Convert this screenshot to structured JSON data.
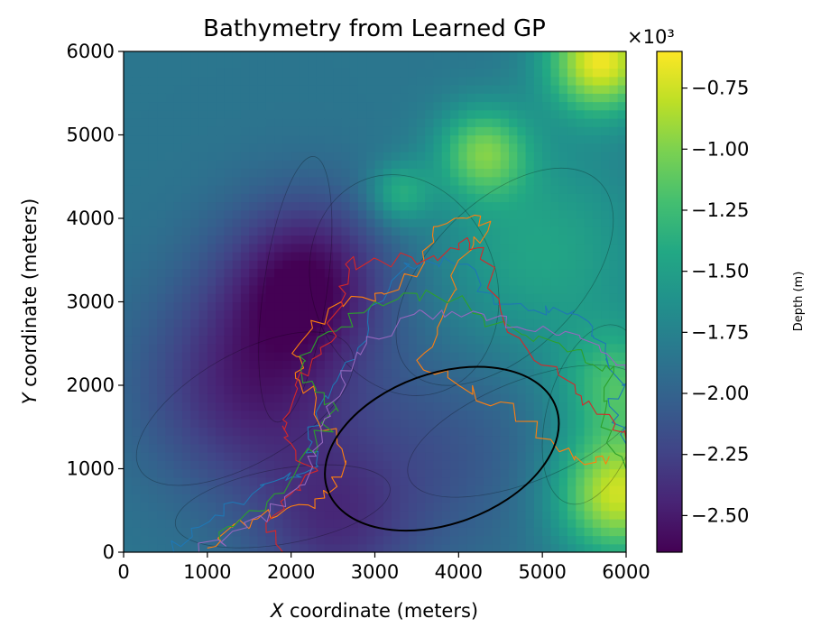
{
  "chart_data": {
    "type": "heatmap",
    "title": "Bathymetry from Learned GP",
    "xlabel_var": "X",
    "xlabel_rest": " coordinate (meters)",
    "ylabel_var": "Y",
    "ylabel_rest": " coordinate (meters)",
    "xlim": [
      0,
      6000
    ],
    "ylim": [
      0,
      6000
    ],
    "xticks": [
      0,
      1000,
      2000,
      3000,
      4000,
      5000,
      6000
    ],
    "yticks": [
      0,
      1000,
      2000,
      3000,
      4000,
      5000,
      6000
    ],
    "colorbar": {
      "label": "Depth (m)",
      "multiplier": "×10³",
      "colormap": "viridis",
      "range": [
        -2650,
        -600
      ],
      "ticks": [
        -0.75,
        -1.0,
        -1.25,
        -1.5,
        -1.75,
        -2.0,
        -2.25,
        -2.5
      ],
      "tick_labels": [
        "−0.75",
        "−1.00",
        "−1.25",
        "−1.50",
        "−1.75",
        "−2.00",
        "−2.25",
        "−2.50"
      ]
    },
    "field": {
      "base_depth": -1850,
      "features": [
        {
          "x": 5700,
          "y": 5900,
          "depth_delta": 1200,
          "sigma": 450
        },
        {
          "x": 4300,
          "y": 4800,
          "depth_delta": 750,
          "sigma": 380
        },
        {
          "x": 3300,
          "y": 4300,
          "depth_delta": 480,
          "sigma": 260
        },
        {
          "x": 5900,
          "y": 700,
          "depth_delta": 1100,
          "sigma": 520
        },
        {
          "x": 5900,
          "y": 2000,
          "depth_delta": 600,
          "sigma": 480
        },
        {
          "x": 5000,
          "y": 3600,
          "depth_delta": 400,
          "sigma": 900
        },
        {
          "x": 2200,
          "y": 3300,
          "depth_delta": -700,
          "sigma": 700
        },
        {
          "x": 1500,
          "y": 2000,
          "depth_delta": -600,
          "sigma": 900
        },
        {
          "x": 2500,
          "y": 300,
          "depth_delta": -450,
          "sigma": 700
        },
        {
          "x": 3800,
          "y": 1200,
          "depth_delta": -250,
          "sigma": 900
        }
      ]
    },
    "highlight_ellipse": {
      "cx": 3800,
      "cy": 1240,
      "rx": 1450,
      "ry": 900,
      "rotation_deg": -20,
      "color": "#000000"
    },
    "faint_ellipses": [
      {
        "cx": 2050,
        "cy": 3150,
        "rx": 1600,
        "ry": 380,
        "rotation_deg": -82
      },
      {
        "cx": 3350,
        "cy": 3200,
        "rx": 1100,
        "ry": 1350,
        "rotation_deg": -20
      },
      {
        "cx": 4550,
        "cy": 3300,
        "rx": 1600,
        "ry": 900,
        "rotation_deg": -45
      },
      {
        "cx": 1450,
        "cy": 1720,
        "rx": 1450,
        "ry": 650,
        "rotation_deg": -30
      },
      {
        "cx": 5600,
        "cy": 1650,
        "rx": 1100,
        "ry": 550,
        "rotation_deg": -75
      },
      {
        "cx": 4800,
        "cy": 1450,
        "rx": 1500,
        "ry": 600,
        "rotation_deg": -22
      },
      {
        "cx": 1900,
        "cy": 550,
        "rx": 1300,
        "ry": 450,
        "rotation_deg": -10
      }
    ],
    "series": [
      {
        "color": "#1f77b4",
        "points": [
          [
            600,
            0
          ],
          [
            900,
            300
          ],
          [
            1300,
            600
          ],
          [
            1800,
            850
          ],
          [
            2000,
            900
          ],
          [
            2300,
            1050
          ],
          [
            2200,
            1500
          ],
          [
            2500,
            2000
          ],
          [
            2800,
            2450
          ],
          [
            2950,
            2950
          ],
          [
            3300,
            3350
          ],
          [
            3600,
            3500
          ],
          [
            3950,
            3450
          ],
          [
            4400,
            3100
          ],
          [
            4900,
            2900
          ],
          [
            5300,
            2850
          ],
          [
            5600,
            2700
          ],
          [
            5750,
            2400
          ],
          [
            5950,
            2000
          ],
          [
            5800,
            1750
          ],
          [
            6000,
            1300
          ]
        ]
      },
      {
        "color": "#ff7f0e",
        "points": [
          [
            1000,
            50
          ],
          [
            1300,
            300
          ],
          [
            1600,
            400
          ],
          [
            2000,
            550
          ],
          [
            2400,
            650
          ],
          [
            2600,
            900
          ],
          [
            2550,
            1300
          ],
          [
            2300,
            1850
          ],
          [
            2050,
            2150
          ],
          [
            2100,
            2500
          ],
          [
            2600,
            3000
          ],
          [
            3000,
            3100
          ],
          [
            3500,
            3300
          ],
          [
            3700,
            3900
          ],
          [
            4100,
            4000
          ],
          [
            4350,
            3850
          ],
          [
            4000,
            3500
          ],
          [
            3800,
            2800
          ],
          [
            3500,
            2300
          ],
          [
            4000,
            2000
          ],
          [
            4500,
            1800
          ],
          [
            5100,
            1350
          ],
          [
            5500,
            1050
          ],
          [
            5800,
            1150
          ]
        ]
      },
      {
        "color": "#2ca02c",
        "points": [
          [
            1150,
            150
          ],
          [
            1500,
            500
          ],
          [
            1800,
            700
          ],
          [
            2100,
            1100
          ],
          [
            2400,
            1450
          ],
          [
            2500,
            1800
          ],
          [
            2250,
            2050
          ],
          [
            2100,
            2350
          ],
          [
            2600,
            2700
          ],
          [
            3000,
            3000
          ],
          [
            3500,
            3100
          ],
          [
            4000,
            3050
          ],
          [
            4300,
            2800
          ],
          [
            4800,
            2600
          ],
          [
            5300,
            2400
          ],
          [
            5600,
            2250
          ],
          [
            5850,
            2150
          ],
          [
            5700,
            1500
          ],
          [
            6000,
            1000
          ]
        ]
      },
      {
        "color": "#d62728",
        "points": [
          [
            1900,
            0
          ],
          [
            1700,
            350
          ],
          [
            2050,
            750
          ],
          [
            2300,
            1000
          ],
          [
            2000,
            1300
          ],
          [
            1950,
            1550
          ],
          [
            2050,
            2000
          ],
          [
            2350,
            2450
          ],
          [
            2600,
            3000
          ],
          [
            2650,
            3450
          ],
          [
            3050,
            3500
          ],
          [
            3600,
            3500
          ],
          [
            4000,
            3700
          ],
          [
            4300,
            3650
          ],
          [
            4500,
            2900
          ],
          [
            4900,
            2300
          ],
          [
            5400,
            1900
          ],
          [
            5800,
            1650
          ],
          [
            6000,
            1350
          ]
        ]
      },
      {
        "color": "#9467bd",
        "points": [
          [
            900,
            0
          ],
          [
            1300,
            250
          ],
          [
            1750,
            500
          ],
          [
            2100,
            800
          ],
          [
            2300,
            1150
          ],
          [
            2400,
            1600
          ],
          [
            2600,
            2100
          ],
          [
            2900,
            2500
          ],
          [
            3300,
            2800
          ],
          [
            3800,
            2900
          ],
          [
            4300,
            2850
          ],
          [
            4700,
            2700
          ],
          [
            5200,
            2600
          ],
          [
            5700,
            2400
          ],
          [
            6000,
            2150
          ]
        ]
      }
    ]
  }
}
